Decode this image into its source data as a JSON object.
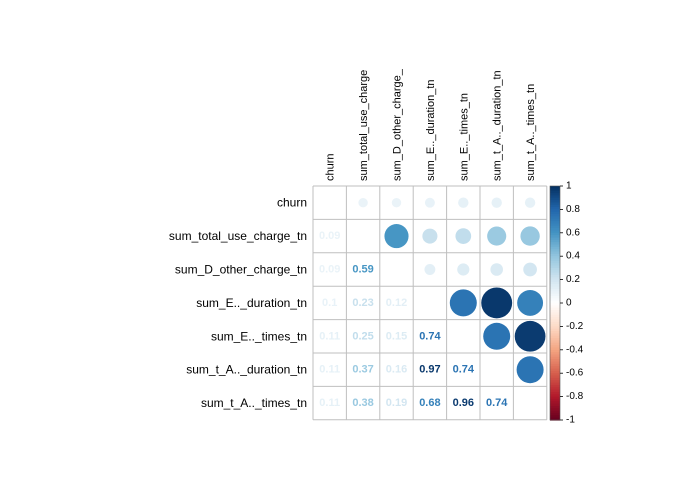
{
  "chart_data": {
    "type": "heatmap",
    "variables": [
      "churn",
      "sum_total_use_charge_tn",
      "sum_D_other_charge_tn",
      "sum_E.._duration_tn",
      "sum_E.._times_tn",
      "sum_t_A.._duration_tn",
      "sum_t_A.._times_tn"
    ],
    "column_labels": [
      "churn",
      "sum_total_use_charge",
      "sum_D_other_charge_",
      "sum_E.._duration_tn",
      "sum_E.._times_tn",
      "sum_t_A.._duration_tn",
      "sum_t_A.._times_tn"
    ],
    "lower_labels": [
      {
        "row": 1,
        "col": 0,
        "text": "0.09"
      },
      {
        "row": 2,
        "col": 0,
        "text": "0.09"
      },
      {
        "row": 2,
        "col": 1,
        "text": "0.59"
      },
      {
        "row": 3,
        "col": 0,
        "text": "0.1"
      },
      {
        "row": 3,
        "col": 1,
        "text": "0.23"
      },
      {
        "row": 3,
        "col": 2,
        "text": "0.12"
      },
      {
        "row": 4,
        "col": 0,
        "text": "0.11"
      },
      {
        "row": 4,
        "col": 1,
        "text": "0.25"
      },
      {
        "row": 4,
        "col": 2,
        "text": "0.15"
      },
      {
        "row": 4,
        "col": 3,
        "text": "0.74"
      },
      {
        "row": 5,
        "col": 0,
        "text": "0.11"
      },
      {
        "row": 5,
        "col": 1,
        "text": "0.37"
      },
      {
        "row": 5,
        "col": 2,
        "text": "0.16"
      },
      {
        "row": 5,
        "col": 3,
        "text": "0.97"
      },
      {
        "row": 5,
        "col": 4,
        "text": "0.74"
      },
      {
        "row": 6,
        "col": 0,
        "text": "0.11"
      },
      {
        "row": 6,
        "col": 1,
        "text": "0.38"
      },
      {
        "row": 6,
        "col": 2,
        "text": "0.19"
      },
      {
        "row": 6,
        "col": 3,
        "text": "0.68"
      },
      {
        "row": 6,
        "col": 4,
        "text": "0.96"
      },
      {
        "row": 6,
        "col": 5,
        "text": "0.74"
      }
    ],
    "upper_method": "circle",
    "lower_method": "number",
    "diagonal_shown": false,
    "colorbar": {
      "min": -1,
      "max": 1,
      "tick_labels": [
        "-1",
        "-0.8",
        "-0.6",
        "-0.4",
        "-0.2",
        "0",
        "0.2",
        "0.4",
        "0.6",
        "0.8",
        "1"
      ],
      "colors": [
        "#67001F",
        "#B2182B",
        "#D6604D",
        "#F4A582",
        "#FDDBC7",
        "#FFFFFF",
        "#D1E5F0",
        "#92C5DE",
        "#4393C3",
        "#2166AC",
        "#053061"
      ]
    }
  }
}
